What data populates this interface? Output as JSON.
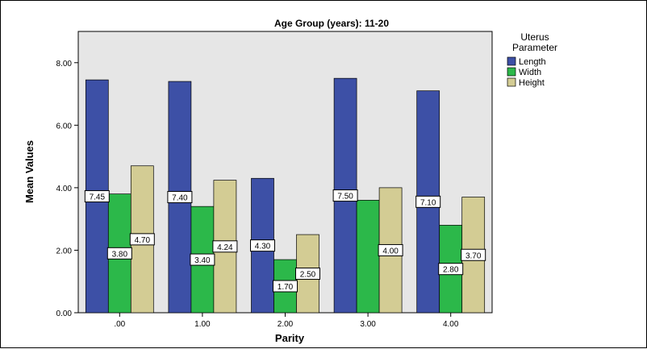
{
  "chart_data": {
    "type": "bar",
    "title": "Age Group (years): 11-20",
    "xlabel": "Parity",
    "ylabel": "Mean Values",
    "categories": [
      ".00",
      "1.00",
      "2.00",
      "3.00",
      "4.00"
    ],
    "ylim": [
      0,
      9
    ],
    "yticks": [
      "0.00",
      "2.00",
      "4.00",
      "6.00",
      "8.00"
    ],
    "legend_title": [
      "Uterus",
      "Parameter"
    ],
    "legend_position": "right",
    "grid": false,
    "series": [
      {
        "name": "Length",
        "color": "#3d50a6",
        "values": [
          7.45,
          7.4,
          4.3,
          7.5,
          7.1
        ],
        "labels": [
          "7.45",
          "7.40",
          "4.30",
          "7.50",
          "7.10"
        ]
      },
      {
        "name": "Width",
        "color": "#2cb84a",
        "values": [
          3.8,
          3.4,
          1.7,
          3.6,
          2.8
        ],
        "labels": [
          "3.80",
          "3.40",
          "1.70",
          "",
          "2.80"
        ]
      },
      {
        "name": "Height",
        "color": "#d3cc94",
        "values": [
          4.7,
          4.24,
          2.5,
          4.0,
          3.7
        ],
        "labels": [
          "4.70",
          "4.24",
          "2.50",
          "4.00",
          "3.70"
        ]
      }
    ],
    "plot_background": "#e6e6e6"
  }
}
